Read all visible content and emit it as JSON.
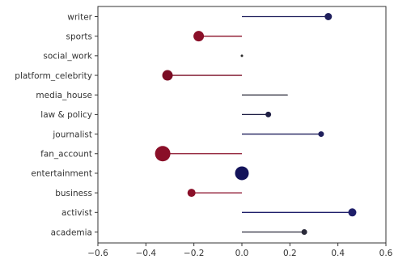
{
  "chart_data": {
    "type": "lollipop",
    "title": "",
    "xlabel": "",
    "ylabel": "",
    "xlim": [
      -0.6,
      0.6
    ],
    "xticks": [
      -0.6,
      -0.4,
      -0.2,
      0.0,
      0.2,
      0.4,
      0.6
    ],
    "xtick_labels": [
      "−0.6",
      "−0.4",
      "−0.2",
      "0.0",
      "0.2",
      "0.4",
      "0.6"
    ],
    "grid": false,
    "legend": "none",
    "categories": [
      "writer",
      "sports",
      "social_work",
      "platform_celebrity",
      "media_house",
      "law & policy",
      "journalist",
      "fan_account",
      "entertainment",
      "business",
      "activist",
      "academia"
    ],
    "values": [
      0.36,
      -0.18,
      0.0,
      -0.31,
      0.19,
      0.11,
      0.33,
      -0.33,
      0.0,
      -0.21,
      0.46,
      0.26
    ],
    "marker_size": [
      4.5,
      6.5,
      1.5,
      6.5,
      0.5,
      3.5,
      3.5,
      9.5,
      8.5,
      5.0,
      5.0,
      3.5
    ],
    "colors": [
      "#1f1f5c",
      "#8a0f28",
      "#2a2a2a",
      "#7a0c24",
      "#2a2a3a",
      "#1f1f44",
      "#1f1f5c",
      "#8a0f28",
      "#13135a",
      "#8a0f28",
      "#1f1f6a",
      "#2a2a3a"
    ]
  }
}
